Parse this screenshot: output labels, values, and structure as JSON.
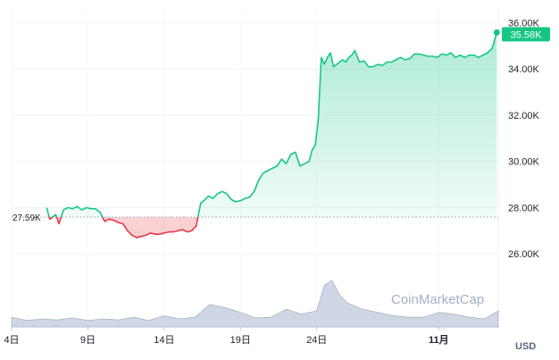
{
  "chart_data": {
    "type": "area",
    "currency": "USD",
    "watermark": "CoinMarketCap",
    "baseline_label": "27.59K",
    "baseline": 27590,
    "last_price_label": "35.58K",
    "ylim": [
      25000,
      36600
    ],
    "ytick_labels": [
      {
        "value": 36000,
        "label": "36.00K"
      },
      {
        "value": 34000,
        "label": "34.00K"
      },
      {
        "value": 32000,
        "label": "32.00K"
      },
      {
        "value": 30000,
        "label": "30.00K"
      },
      {
        "value": 28000,
        "label": "28.00K"
      },
      {
        "value": 26000,
        "label": "26.00K"
      }
    ],
    "xlim": [
      4,
      35.9
    ],
    "xtick_labels": [
      {
        "day": 4,
        "label": "4日",
        "bold": false
      },
      {
        "day": 9,
        "label": "9日",
        "bold": false
      },
      {
        "day": 14,
        "label": "14日",
        "bold": false
      },
      {
        "day": 19,
        "label": "19日",
        "bold": false
      },
      {
        "day": 24,
        "label": "24日",
        "bold": false
      },
      {
        "day": 32,
        "label": "11月",
        "bold": true
      }
    ],
    "x": [
      6.3,
      6.5,
      6.7,
      6.9,
      7.1,
      7.4,
      7.7,
      8.0,
      8.3,
      8.6,
      8.9,
      9.2,
      9.5,
      9.8,
      10.1,
      10.4,
      10.7,
      11.0,
      11.3,
      11.6,
      11.9,
      12.2,
      12.5,
      12.8,
      13.1,
      13.4,
      13.7,
      14.0,
      14.3,
      14.6,
      14.9,
      15.2,
      15.5,
      15.8,
      16.1,
      16.4,
      16.6,
      16.9,
      17.2,
      17.5,
      17.8,
      18.1,
      18.4,
      18.7,
      19.0,
      19.3,
      19.6,
      19.9,
      20.2,
      20.5,
      20.8,
      21.1,
      21.4,
      21.7,
      22.0,
      22.3,
      22.6,
      22.9,
      23.2,
      23.5,
      23.7,
      23.9,
      24.1,
      24.3,
      24.5,
      24.7,
      24.9,
      25.1,
      25.3,
      25.5,
      25.7,
      25.9,
      26.1,
      26.3,
      26.5,
      26.8,
      27.1,
      27.4,
      27.7,
      28.0,
      28.3,
      28.6,
      28.9,
      29.2,
      29.5,
      29.8,
      30.1,
      30.4,
      30.7,
      31.0,
      31.3,
      31.6,
      31.9,
      32.2,
      32.5,
      32.8,
      33.1,
      33.4,
      33.7,
      34.0,
      34.3,
      34.6,
      34.9,
      35.2,
      35.5,
      35.8
    ],
    "values": [
      28000,
      27500,
      27600,
      27700,
      27300,
      27900,
      28000,
      27950,
      28050,
      27900,
      28000,
      27950,
      27950,
      27800,
      27400,
      27500,
      27450,
      27350,
      27300,
      27000,
      26800,
      26700,
      26750,
      26800,
      26900,
      26850,
      26850,
      26900,
      26950,
      26950,
      27000,
      27050,
      26950,
      27000,
      27200,
      28200,
      28300,
      28500,
      28400,
      28600,
      28700,
      28600,
      28350,
      28250,
      28300,
      28400,
      28450,
      28700,
      29200,
      29500,
      29600,
      29700,
      29800,
      30100,
      29900,
      30300,
      30400,
      29800,
      29900,
      30000,
      30500,
      30700,
      31800,
      34500,
      34200,
      34500,
      34700,
      34100,
      34200,
      34300,
      34400,
      34300,
      34500,
      34600,
      34800,
      34300,
      34350,
      34100,
      34100,
      34200,
      34150,
      34300,
      34300,
      34400,
      34500,
      34400,
      34450,
      34650,
      34650,
      34600,
      34550,
      34550,
      34500,
      34650,
      34600,
      34700,
      34500,
      34600,
      34500,
      34600,
      34600,
      34500,
      34600,
      34700,
      34900,
      35580
    ],
    "volume_x": [
      4,
      5,
      6,
      7,
      8,
      9,
      10,
      11,
      12,
      13,
      14,
      15,
      16,
      17,
      18,
      19,
      20,
      21,
      22,
      23,
      24,
      24.5,
      25,
      25.5,
      26,
      27,
      28,
      29,
      30,
      31,
      32,
      33,
      34,
      35,
      35.9
    ],
    "volume_values": [
      0.3,
      0.2,
      0.25,
      0.22,
      0.28,
      0.2,
      0.25,
      0.22,
      0.3,
      0.2,
      0.35,
      0.25,
      0.3,
      0.7,
      0.6,
      0.45,
      0.28,
      0.3,
      0.55,
      0.4,
      0.5,
      1.3,
      1.45,
      1.0,
      0.75,
      0.55,
      0.45,
      0.35,
      0.3,
      0.3,
      0.45,
      0.4,
      0.3,
      0.25,
      0.5
    ]
  }
}
